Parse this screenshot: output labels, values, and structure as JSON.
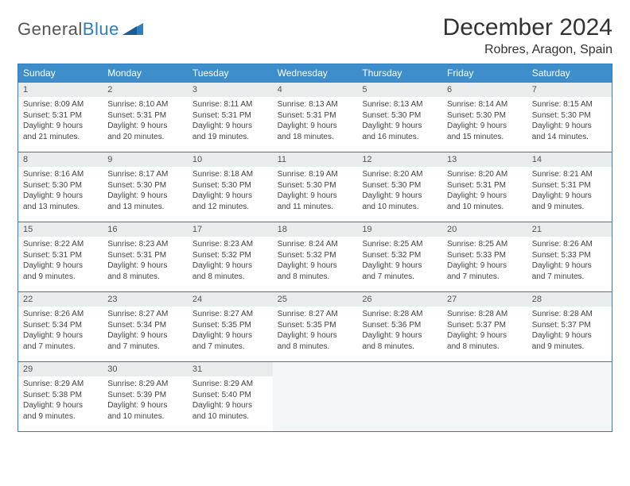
{
  "logo": {
    "word1": "General",
    "word2": "Blue"
  },
  "title": "December 2024",
  "location": "Robres, Aragon, Spain",
  "colors": {
    "header_bg": "#3d8ecb",
    "header_text": "#ffffff",
    "border": "#2f7ec2",
    "daynum_bg": "#e9eced",
    "empty_bg": "#f4f5f6",
    "logo_blue": "#2f7ec2"
  },
  "weekdays": [
    "Sunday",
    "Monday",
    "Tuesday",
    "Wednesday",
    "Thursday",
    "Friday",
    "Saturday"
  ],
  "weeks": [
    [
      {
        "n": "1",
        "sr": "Sunrise: 8:09 AM",
        "ss": "Sunset: 5:31 PM",
        "d1": "Daylight: 9 hours",
        "d2": "and 21 minutes."
      },
      {
        "n": "2",
        "sr": "Sunrise: 8:10 AM",
        "ss": "Sunset: 5:31 PM",
        "d1": "Daylight: 9 hours",
        "d2": "and 20 minutes."
      },
      {
        "n": "3",
        "sr": "Sunrise: 8:11 AM",
        "ss": "Sunset: 5:31 PM",
        "d1": "Daylight: 9 hours",
        "d2": "and 19 minutes."
      },
      {
        "n": "4",
        "sr": "Sunrise: 8:13 AM",
        "ss": "Sunset: 5:31 PM",
        "d1": "Daylight: 9 hours",
        "d2": "and 18 minutes."
      },
      {
        "n": "5",
        "sr": "Sunrise: 8:13 AM",
        "ss": "Sunset: 5:30 PM",
        "d1": "Daylight: 9 hours",
        "d2": "and 16 minutes."
      },
      {
        "n": "6",
        "sr": "Sunrise: 8:14 AM",
        "ss": "Sunset: 5:30 PM",
        "d1": "Daylight: 9 hours",
        "d2": "and 15 minutes."
      },
      {
        "n": "7",
        "sr": "Sunrise: 8:15 AM",
        "ss": "Sunset: 5:30 PM",
        "d1": "Daylight: 9 hours",
        "d2": "and 14 minutes."
      }
    ],
    [
      {
        "n": "8",
        "sr": "Sunrise: 8:16 AM",
        "ss": "Sunset: 5:30 PM",
        "d1": "Daylight: 9 hours",
        "d2": "and 13 minutes."
      },
      {
        "n": "9",
        "sr": "Sunrise: 8:17 AM",
        "ss": "Sunset: 5:30 PM",
        "d1": "Daylight: 9 hours",
        "d2": "and 13 minutes."
      },
      {
        "n": "10",
        "sr": "Sunrise: 8:18 AM",
        "ss": "Sunset: 5:30 PM",
        "d1": "Daylight: 9 hours",
        "d2": "and 12 minutes."
      },
      {
        "n": "11",
        "sr": "Sunrise: 8:19 AM",
        "ss": "Sunset: 5:30 PM",
        "d1": "Daylight: 9 hours",
        "d2": "and 11 minutes."
      },
      {
        "n": "12",
        "sr": "Sunrise: 8:20 AM",
        "ss": "Sunset: 5:30 PM",
        "d1": "Daylight: 9 hours",
        "d2": "and 10 minutes."
      },
      {
        "n": "13",
        "sr": "Sunrise: 8:20 AM",
        "ss": "Sunset: 5:31 PM",
        "d1": "Daylight: 9 hours",
        "d2": "and 10 minutes."
      },
      {
        "n": "14",
        "sr": "Sunrise: 8:21 AM",
        "ss": "Sunset: 5:31 PM",
        "d1": "Daylight: 9 hours",
        "d2": "and 9 minutes."
      }
    ],
    [
      {
        "n": "15",
        "sr": "Sunrise: 8:22 AM",
        "ss": "Sunset: 5:31 PM",
        "d1": "Daylight: 9 hours",
        "d2": "and 9 minutes."
      },
      {
        "n": "16",
        "sr": "Sunrise: 8:23 AM",
        "ss": "Sunset: 5:31 PM",
        "d1": "Daylight: 9 hours",
        "d2": "and 8 minutes."
      },
      {
        "n": "17",
        "sr": "Sunrise: 8:23 AM",
        "ss": "Sunset: 5:32 PM",
        "d1": "Daylight: 9 hours",
        "d2": "and 8 minutes."
      },
      {
        "n": "18",
        "sr": "Sunrise: 8:24 AM",
        "ss": "Sunset: 5:32 PM",
        "d1": "Daylight: 9 hours",
        "d2": "and 8 minutes."
      },
      {
        "n": "19",
        "sr": "Sunrise: 8:25 AM",
        "ss": "Sunset: 5:32 PM",
        "d1": "Daylight: 9 hours",
        "d2": "and 7 minutes."
      },
      {
        "n": "20",
        "sr": "Sunrise: 8:25 AM",
        "ss": "Sunset: 5:33 PM",
        "d1": "Daylight: 9 hours",
        "d2": "and 7 minutes."
      },
      {
        "n": "21",
        "sr": "Sunrise: 8:26 AM",
        "ss": "Sunset: 5:33 PM",
        "d1": "Daylight: 9 hours",
        "d2": "and 7 minutes."
      }
    ],
    [
      {
        "n": "22",
        "sr": "Sunrise: 8:26 AM",
        "ss": "Sunset: 5:34 PM",
        "d1": "Daylight: 9 hours",
        "d2": "and 7 minutes."
      },
      {
        "n": "23",
        "sr": "Sunrise: 8:27 AM",
        "ss": "Sunset: 5:34 PM",
        "d1": "Daylight: 9 hours",
        "d2": "and 7 minutes."
      },
      {
        "n": "24",
        "sr": "Sunrise: 8:27 AM",
        "ss": "Sunset: 5:35 PM",
        "d1": "Daylight: 9 hours",
        "d2": "and 7 minutes."
      },
      {
        "n": "25",
        "sr": "Sunrise: 8:27 AM",
        "ss": "Sunset: 5:35 PM",
        "d1": "Daylight: 9 hours",
        "d2": "and 8 minutes."
      },
      {
        "n": "26",
        "sr": "Sunrise: 8:28 AM",
        "ss": "Sunset: 5:36 PM",
        "d1": "Daylight: 9 hours",
        "d2": "and 8 minutes."
      },
      {
        "n": "27",
        "sr": "Sunrise: 8:28 AM",
        "ss": "Sunset: 5:37 PM",
        "d1": "Daylight: 9 hours",
        "d2": "and 8 minutes."
      },
      {
        "n": "28",
        "sr": "Sunrise: 8:28 AM",
        "ss": "Sunset: 5:37 PM",
        "d1": "Daylight: 9 hours",
        "d2": "and 9 minutes."
      }
    ],
    [
      {
        "n": "29",
        "sr": "Sunrise: 8:29 AM",
        "ss": "Sunset: 5:38 PM",
        "d1": "Daylight: 9 hours",
        "d2": "and 9 minutes."
      },
      {
        "n": "30",
        "sr": "Sunrise: 8:29 AM",
        "ss": "Sunset: 5:39 PM",
        "d1": "Daylight: 9 hours",
        "d2": "and 10 minutes."
      },
      {
        "n": "31",
        "sr": "Sunrise: 8:29 AM",
        "ss": "Sunset: 5:40 PM",
        "d1": "Daylight: 9 hours",
        "d2": "and 10 minutes."
      },
      null,
      null,
      null,
      null
    ]
  ]
}
